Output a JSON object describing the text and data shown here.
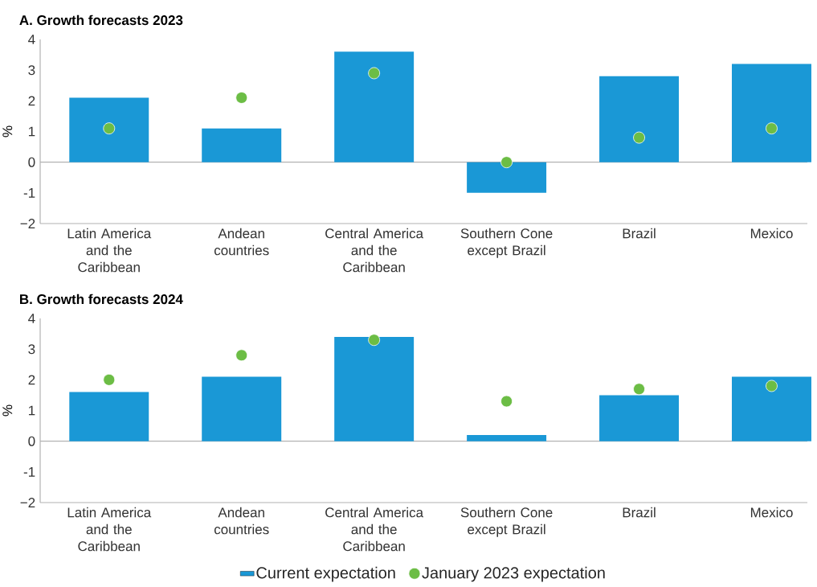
{
  "chart_data": [
    {
      "type": "bar",
      "title": "A. Growth forecasts 2023",
      "ylabel": "%",
      "categories": [
        "Latin America and the Caribbean",
        "Andean countries",
        "Central America and the Caribbean",
        "Southern Cone except Brazil",
        "Brazil",
        "Mexico"
      ],
      "series": [
        {
          "color": "#1a98d6",
          "values": [
            2.1,
            1.1,
            3.6,
            -1.0,
            2.8,
            3.2
          ]
        },
        {
          "type": "scatter",
          "color": "#6cbd45",
          "values": [
            1.1,
            2.1,
            2.9,
            0.0,
            0.8,
            1.1
          ]
        }
      ],
      "ylim": [
        -2,
        4
      ],
      "yticks": [
        {
          "value": -2,
          "label": "−2"
        },
        {
          "value": -1,
          "label": "-1"
        },
        {
          "value": 0,
          "label": "0"
        },
        {
          "value": 1,
          "label": "1"
        },
        {
          "value": 2,
          "label": "2"
        },
        {
          "value": 3,
          "label": "3"
        },
        {
          "value": 4,
          "label": "4"
        }
      ]
    },
    {
      "type": "bar",
      "title": "B. Growth forecasts 2024",
      "ylabel": "%",
      "categories": [
        "Latin America and the Caribbean",
        "Andean countries",
        "Central America and the Caribbean",
        "Southern Cone except Brazil",
        "Brazil",
        "Mexico"
      ],
      "series": [
        {
          "name": "Current expectation",
          "color": "#1a98d6",
          "values": [
            1.6,
            2.1,
            3.4,
            0.2,
            1.5,
            2.1
          ]
        },
        {
          "name": "January 2023 expectation",
          "type": "scatter",
          "color": "#6cbd45",
          "values": [
            2.0,
            2.8,
            3.3,
            1.3,
            1.7,
            1.8
          ]
        }
      ],
      "legend": "bottom",
      "ylim": [
        -2,
        4
      ],
      "yticks": [
        {
          "value": -2,
          "label": "−2"
        },
        {
          "value": -1,
          "label": "-1"
        },
        {
          "value": 0,
          "label": "0"
        },
        {
          "value": 1,
          "label": "1"
        },
        {
          "value": 2,
          "label": "2"
        },
        {
          "value": 3,
          "label": "3"
        },
        {
          "value": 4,
          "label": "4"
        }
      ]
    }
  ]
}
